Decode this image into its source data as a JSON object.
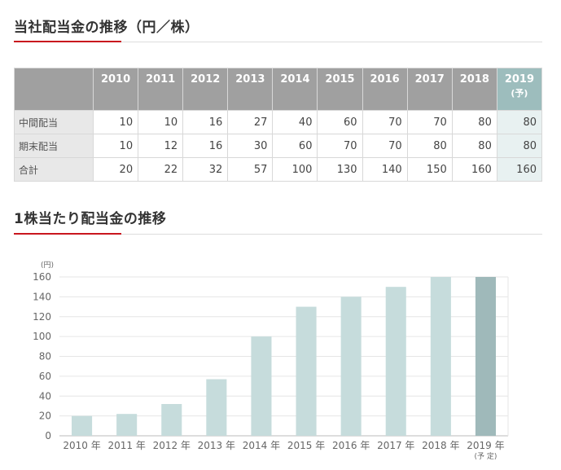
{
  "section1": {
    "title": "当社配当金の推移（円／株）"
  },
  "table": {
    "columns": [
      "2010",
      "2011",
      "2012",
      "2013",
      "2014",
      "2015",
      "2016",
      "2017",
      "2018",
      "2019"
    ],
    "last_column_sub": "(予)",
    "rows": [
      {
        "label": "中間配当",
        "values": [
          "10",
          "10",
          "16",
          "27",
          "40",
          "60",
          "70",
          "70",
          "80",
          "80"
        ]
      },
      {
        "label": "期末配当",
        "values": [
          "10",
          "12",
          "16",
          "30",
          "60",
          "70",
          "70",
          "80",
          "80",
          "80"
        ]
      },
      {
        "label": "合計",
        "values": [
          "20",
          "22",
          "32",
          "57",
          "100",
          "130",
          "140",
          "150",
          "160",
          "160"
        ]
      }
    ]
  },
  "section2": {
    "title": "1株当たり配当金の推移"
  },
  "colors": {
    "accent_red": "#c9171e",
    "bar": "#c6dcdc",
    "bar_forecast": "#9fb9ba",
    "header_gray": "#a0a0a0",
    "header_highlight": "#9dbdbd"
  },
  "chart_data": {
    "type": "bar",
    "unit": "(円)",
    "categories": [
      "2010 年",
      "2011 年",
      "2012 年",
      "2013 年",
      "2014 年",
      "2015 年",
      "2016 年",
      "2017 年",
      "2018 年",
      "2019 年"
    ],
    "category_sub": [
      "",
      "",
      "",
      "",
      "",
      "",
      "",
      "",
      "",
      "(予 定)"
    ],
    "values": [
      20,
      22,
      32,
      57,
      100,
      130,
      140,
      150,
      160,
      160
    ],
    "forecast_index": 9,
    "yticks": [
      "0",
      "20",
      "40",
      "60",
      "80",
      "100",
      "120",
      "140",
      "160"
    ],
    "ylim": [
      0,
      160
    ],
    "grid": true
  }
}
